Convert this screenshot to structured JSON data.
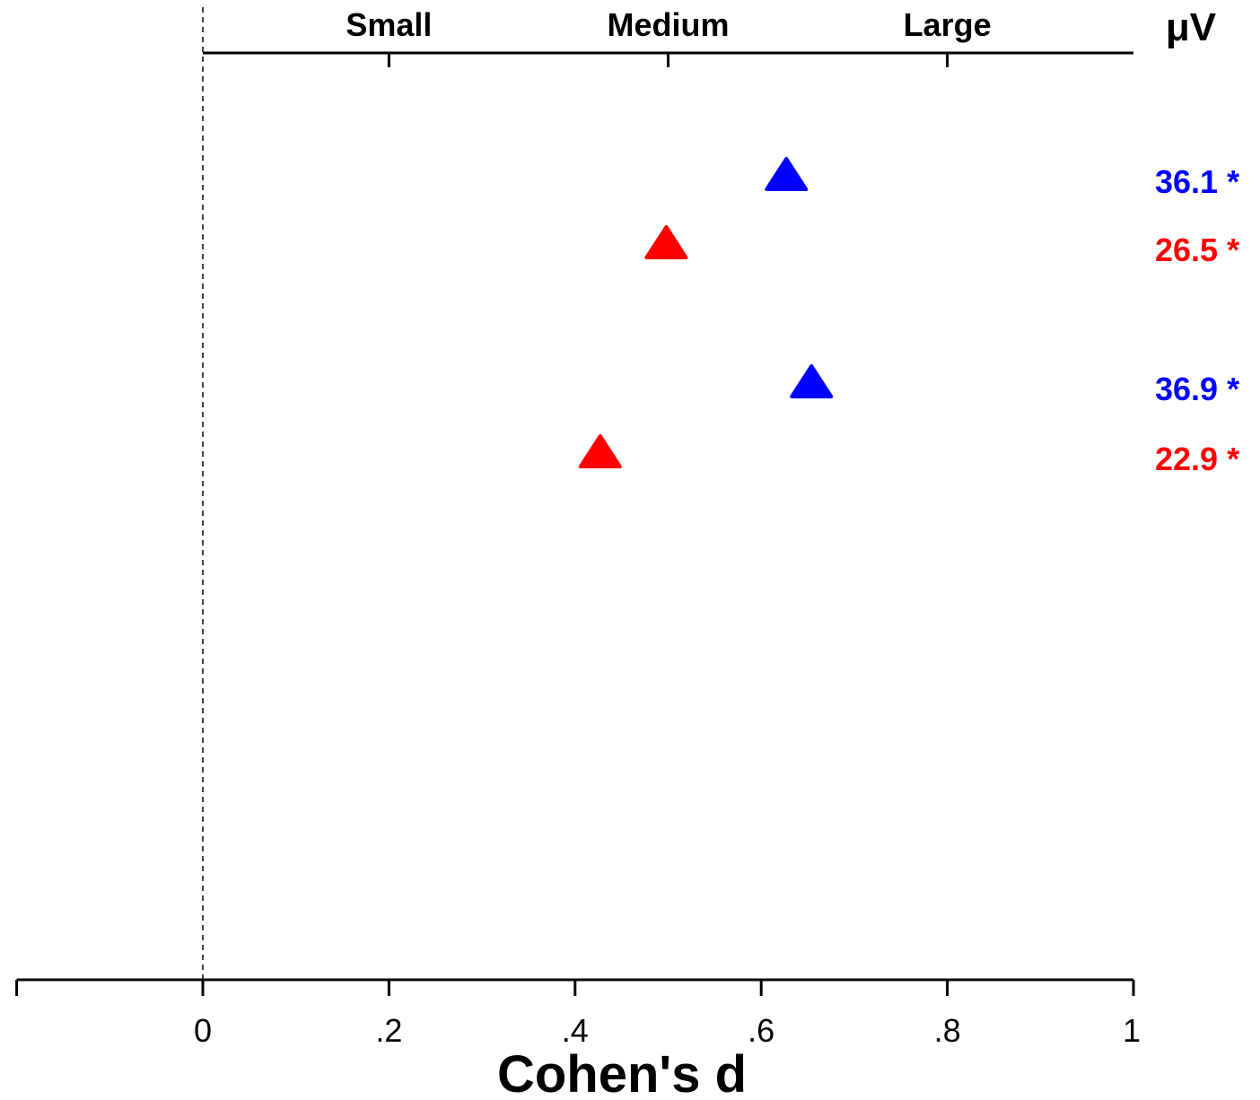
{
  "chart_data": {
    "type": "scatter",
    "xlabel": "Cohen's d",
    "xlim": [
      -0.2,
      1.0
    ],
    "x_ticks": [
      "0",
      ".2",
      ".4",
      ".6",
      ".8",
      "1"
    ],
    "x_tick_values": [
      0,
      0.2,
      0.4,
      0.6,
      0.8,
      1.0
    ],
    "top_axis": {
      "labels": [
        "Small",
        "Medium",
        "Large"
      ],
      "values": [
        0.2,
        0.5,
        0.8
      ]
    },
    "unit_label": "μV",
    "reference_line": 0,
    "marker": "triangle",
    "points": [
      {
        "x": 0.627,
        "color": "#0000ff",
        "label": "36.1 *"
      },
      {
        "x": 0.498,
        "color": "#ff0000",
        "label": "26.5 *"
      },
      {
        "x": 0.654,
        "color": "#0000ff",
        "label": "36.9 *"
      },
      {
        "x": 0.427,
        "color": "#ff0000",
        "label": "22.9 *"
      }
    ]
  }
}
